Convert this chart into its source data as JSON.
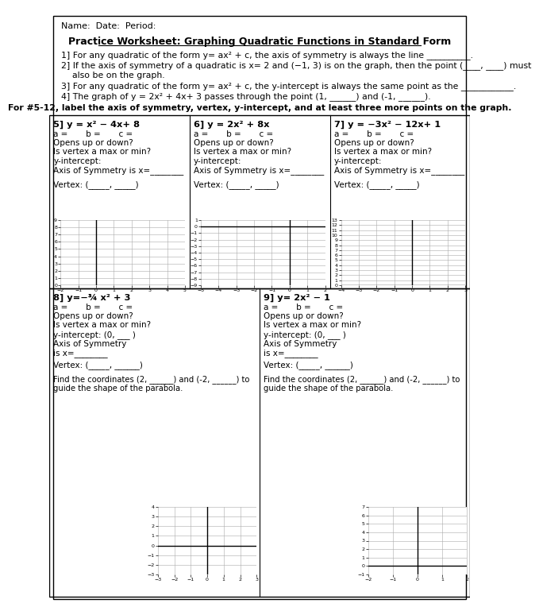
{
  "title": "Practice Worksheet: Graphing Quadratic Functions in Standard Form",
  "name_line": "Name:  Date:  Period:",
  "questions": [
    "1] For any quadratic of the form y= ax² + c, the axis of symmetry is always the line __________.",
    "2] If the axis of symmetry of a quadratic is x= 2 and (−1, 3) is on the graph, then the point (____, ____) must\n    also be on the graph.",
    "3] For any quadratic of the form y= ax² + c, the y-intercept is always the same point as the ____________.",
    "4] The graph of y = 2x² + 4x+ 3 passes through the point (1, ______) and (-1, ______)."
  ],
  "bold_instruction": "For #5-12, label the axis of symmetry, vertex, y-intercept, and at least three more points on the graph.",
  "cells": [
    {
      "num": "5",
      "func": "y = x² − 4x+ 8",
      "xmin": -2,
      "xmax": 5,
      "ymin": 0,
      "ymax": 9,
      "xticks": [
        -2,
        -1,
        0,
        1,
        2,
        3,
        4,
        5
      ],
      "yticks": [
        0,
        1,
        2,
        3,
        4,
        5,
        6,
        7,
        8,
        9
      ]
    },
    {
      "num": "6",
      "func": "y = 2x² + 8x",
      "xmin": -5,
      "xmax": 2,
      "ymin": -9,
      "ymax": 1,
      "xticks": [
        -5,
        -4,
        -3,
        -2,
        -1,
        0,
        1,
        2
      ],
      "yticks": [
        -9,
        -8,
        -7,
        -6,
        -5,
        -4,
        -3,
        -2,
        -1,
        0,
        1
      ]
    },
    {
      "num": "7",
      "func": "y = −3x² − 12x+ 1",
      "xmin": -4,
      "xmax": 3,
      "ymin": 0,
      "ymax": 13,
      "xticks": [
        -4,
        -3,
        -2,
        -1,
        0,
        1,
        2,
        3
      ],
      "yticks": [
        0,
        1,
        2,
        3,
        4,
        5,
        6,
        7,
        8,
        9,
        10,
        11,
        12,
        13
      ]
    }
  ],
  "cells_bottom": [
    {
      "num": "8",
      "func": "y=−¾ x² + 3",
      "xmin": -3,
      "xmax": 3,
      "ymin": -3,
      "ymax": 4,
      "xticks": [
        -3,
        -2,
        -1,
        0,
        1,
        2,
        3
      ],
      "yticks": [
        -3,
        -2,
        -1,
        0,
        1,
        2,
        3,
        4
      ],
      "extra_text": [
        "Find the coordinates (2, ______) and (-2, ______) to",
        "guide the shape of the parabola."
      ]
    },
    {
      "num": "9",
      "func": "y= 2x² − 1",
      "xmin": -2,
      "xmax": 2,
      "ymin": -1,
      "ymax": 7,
      "xticks": [
        -2,
        -1,
        0,
        1,
        2
      ],
      "yticks": [
        -1,
        0,
        1,
        2,
        3,
        4,
        5,
        6,
        7
      ],
      "extra_text": [
        "Find the coordinates (2, ______) and (-2, ______) to",
        "guide the shape of the parabola."
      ]
    }
  ],
  "bg_color": "#ffffff",
  "text_color": "#000000",
  "grid_color": "#aaaaaa",
  "axis_color": "#000000"
}
